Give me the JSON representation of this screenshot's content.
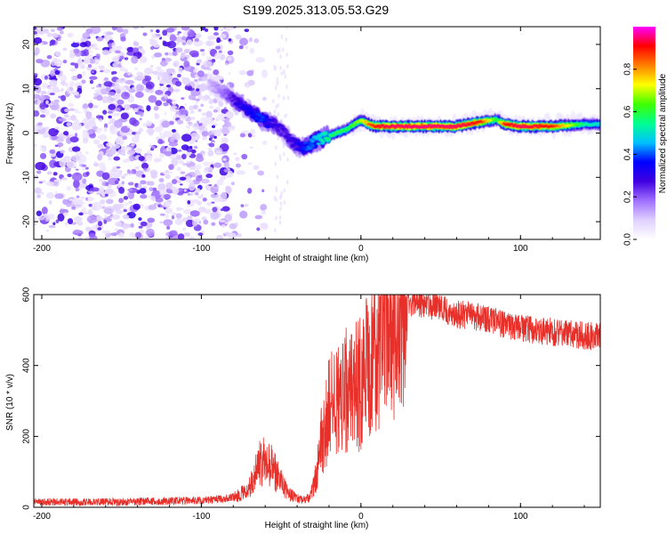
{
  "title": "S199.2025.313.05.53.G29",
  "chart_data": [
    {
      "type": "heatmap",
      "name": "spectrogram",
      "xlabel": "Height of straight line (km)",
      "ylabel": "Frequency (Hz)",
      "xlim": [
        -205,
        150
      ],
      "ylim": [
        -24,
        24
      ],
      "xticks": [
        -200,
        -100,
        0,
        100
      ],
      "yticks": [
        -20,
        -10,
        0,
        10,
        20
      ],
      "xtick_labels": [
        "-200",
        "-100",
        "0",
        "100"
      ],
      "ytick_labels": [
        "-20",
        "-10",
        "0",
        "10",
        "20"
      ],
      "ridge": {
        "x": [
          -95,
          -85,
          -78,
          -70,
          -62,
          -55,
          -48,
          -42,
          -36,
          -30,
          -22,
          -15,
          -8,
          0,
          5,
          10,
          20,
          40,
          60,
          75,
          85,
          90,
          100,
          120,
          140,
          150
        ],
        "freq": [
          11,
          9,
          7,
          5,
          3,
          2,
          0,
          -2.5,
          -3.5,
          -2,
          -1,
          0,
          1,
          3,
          2,
          1.5,
          1.5,
          1.5,
          1.5,
          2.5,
          3,
          2,
          1.5,
          1.5,
          2,
          2
        ],
        "amplitude": [
          0.12,
          0.2,
          0.3,
          0.35,
          0.4,
          0.3,
          0.28,
          0.3,
          0.38,
          0.45,
          0.55,
          0.6,
          0.6,
          0.7,
          0.85,
          0.92,
          0.95,
          0.96,
          0.95,
          0.9,
          0.6,
          0.9,
          0.95,
          0.9,
          0.55,
          0.5
        ]
      }
    },
    {
      "type": "colorbar",
      "name": "amplitude-colorbar",
      "label": "Normalized spectral amplitude",
      "range": [
        0,
        1
      ],
      "ticks": [
        0.0,
        0.2,
        0.4,
        0.6,
        0.8
      ],
      "tick_labels": [
        "0.0",
        "0.2",
        "0.4",
        "0.6",
        "0.8"
      ],
      "colors": [
        "#ffffff",
        "#e0d0ff",
        "#a070ff",
        "#4000e0",
        "#0000ff",
        "#00c0ff",
        "#00ff90",
        "#40ff00",
        "#ffff00",
        "#ff8000",
        "#ff0000",
        "#ff00ff"
      ]
    },
    {
      "type": "line",
      "name": "snr",
      "xlabel": "Height of straight line (km)",
      "ylabel": "SNR (10 * v/v)",
      "xlim": [
        -205,
        150
      ],
      "ylim": [
        0,
        600
      ],
      "xticks": [
        -200,
        -100,
        0,
        100
      ],
      "yticks": [
        0,
        200,
        400,
        600
      ],
      "xtick_labels": [
        "-200",
        "-100",
        "0",
        "100"
      ],
      "ytick_labels": [
        "0",
        "200",
        "400",
        "600"
      ],
      "color": "#e8302a",
      "envelope": {
        "x": [
          -205,
          -150,
          -100,
          -85,
          -78,
          -70,
          -65,
          -60,
          -55,
          -50,
          -45,
          -40,
          -35,
          -32,
          -28,
          -25,
          -20,
          -15,
          -10,
          -5,
          0,
          5,
          10,
          15,
          20,
          25,
          30,
          40,
          50,
          60,
          70,
          80,
          90,
          100,
          110,
          120,
          130,
          140,
          150
        ],
        "values": [
          15,
          15,
          20,
          25,
          30,
          55,
          120,
          130,
          110,
          70,
          40,
          25,
          20,
          30,
          90,
          180,
          280,
          320,
          330,
          330,
          350,
          400,
          450,
          490,
          520,
          550,
          570,
          575,
          560,
          545,
          540,
          530,
          515,
          505,
          500,
          495,
          490,
          485,
          480
        ]
      }
    }
  ]
}
